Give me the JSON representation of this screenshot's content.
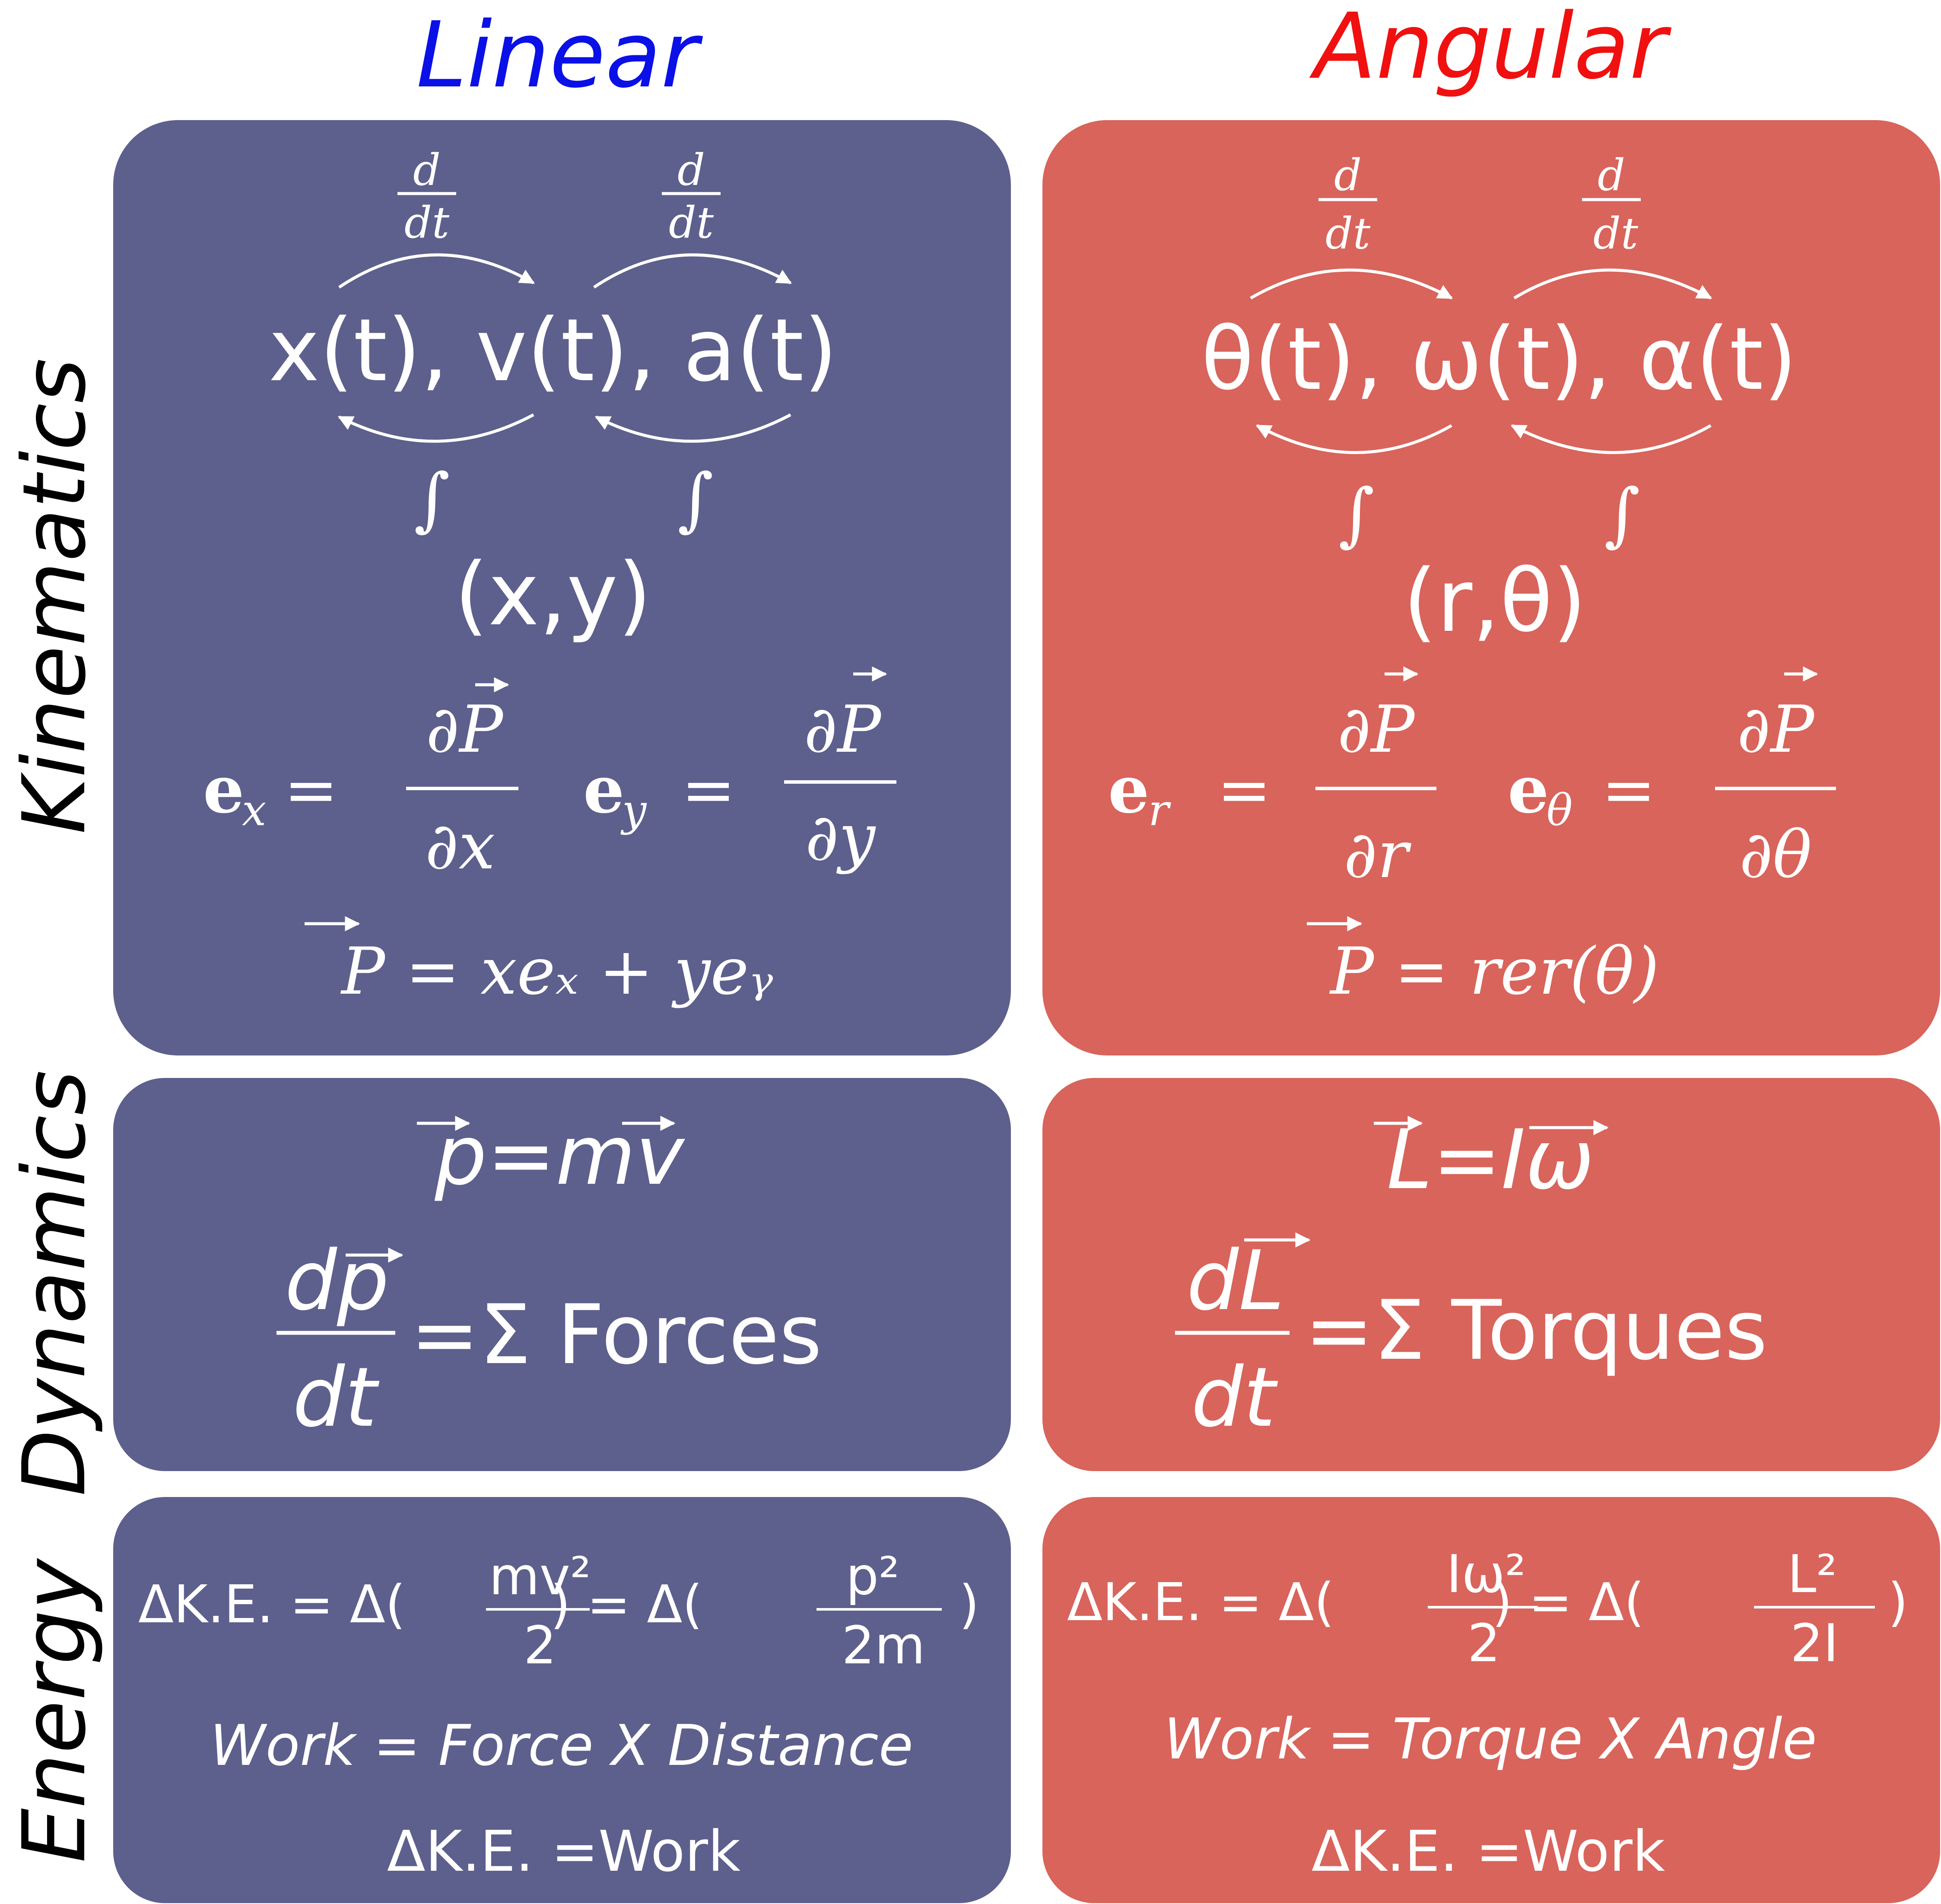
{
  "colors": {
    "linear_panel": "#5d5f8c",
    "angular_panel": "#d8645b",
    "linear_heading": "#0a10e6",
    "angular_heading": "#f01010",
    "text_on_panel": "#ffffff",
    "row_label": "#000000"
  },
  "headings": {
    "linear": "Linear",
    "angular": "Angular"
  },
  "row_labels": {
    "kinematics": "Kinematics",
    "dynamics": "Dynamics",
    "energy": "Energy"
  },
  "linear": {
    "kinematics": {
      "derivative_top": "d",
      "derivative_bottom": "dt",
      "integral": "∫",
      "quantities": "x(t), v(t), a(t)",
      "coords": "(x,y)",
      "basis_x_lhs": "e",
      "basis_x_sub": "x",
      "basis_x_num": "∂P",
      "basis_x_den": "∂x",
      "basis_y_lhs": "e",
      "basis_y_sub": "y",
      "basis_y_num": "∂P",
      "basis_y_den": "∂y",
      "position_eq": "P = xeₓ + yeᵧ"
    },
    "dynamics": {
      "momentum": "p=mv",
      "law_num": "dp",
      "law_den": "dt",
      "law_rhs": "=Σ Forces"
    },
    "energy": {
      "ke_left": "ΔK.E. = Δ(",
      "ke_frac1_num": "mv²",
      "ke_frac1_den": "2",
      "ke_mid": ") = Δ(",
      "ke_frac2_num": "p²",
      "ke_frac2_den": "2m",
      "ke_end": ")",
      "work": "Work = Force X Distance",
      "theorem": "ΔK.E. =Work"
    }
  },
  "angular": {
    "kinematics": {
      "derivative_top": "d",
      "derivative_bottom": "dt",
      "integral": "∫",
      "quantities": "θ(t), ω(t), α(t)",
      "coords": "(r,θ)",
      "basis_r_lhs": "e",
      "basis_r_sub": "r",
      "basis_r_num": "∂P",
      "basis_r_den": "∂r",
      "basis_t_lhs": "e",
      "basis_t_sub": "θ",
      "basis_t_num": "∂P",
      "basis_t_den": "∂θ",
      "position_eq": "P = rer(θ)"
    },
    "dynamics": {
      "momentum": "L=Iω",
      "law_num": "dL",
      "law_den": "dt",
      "law_rhs": "=Σ Torques"
    },
    "energy": {
      "ke_left": "ΔK.E. = Δ(",
      "ke_frac1_num": "Iω²",
      "ke_frac1_den": "2",
      "ke_mid": ") = Δ(",
      "ke_frac2_num": "L²",
      "ke_frac2_den": "2I",
      "ke_end": ")",
      "work": "Work = Torque X Angle",
      "theorem": "ΔK.E. =Work"
    }
  }
}
